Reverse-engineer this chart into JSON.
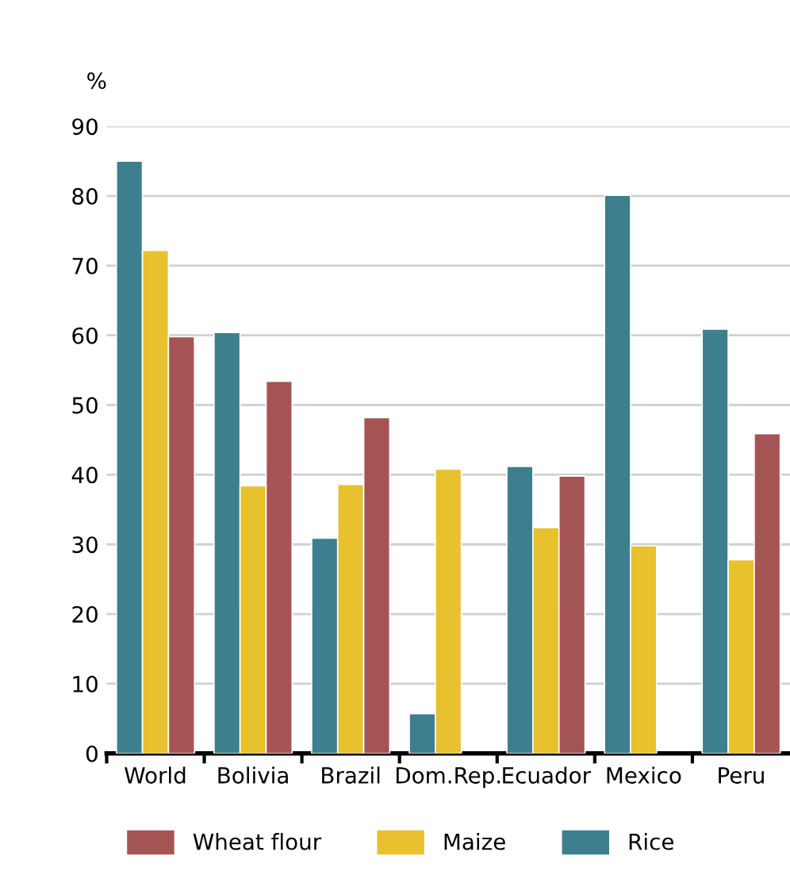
{
  "chart_data": {
    "type": "bar",
    "ylabel": "%",
    "categories": [
      "World",
      "Bolivia",
      "Brazil",
      "Dom.Rep.",
      "Ecuador",
      "Mexico",
      "Peru"
    ],
    "series": [
      {
        "name": "Rice",
        "color": "#3d7f8e",
        "values": [
          85,
          60.4,
          30.9,
          5.7,
          41.2,
          80.1,
          60.9
        ]
      },
      {
        "name": "Maize",
        "color": "#e8c12e",
        "values": [
          72.2,
          38.4,
          38.6,
          40.8,
          32.4,
          29.8,
          27.8
        ]
      },
      {
        "name": "Wheat flour",
        "color": "#a55454",
        "values": [
          59.8,
          53.4,
          48.2,
          null,
          39.8,
          null,
          45.9
        ]
      }
    ],
    "ylim": [
      0,
      90
    ],
    "yticks": [
      0,
      10,
      20,
      30,
      40,
      50,
      60,
      70,
      80,
      90
    ],
    "grid": "y",
    "legend": "bottom"
  }
}
